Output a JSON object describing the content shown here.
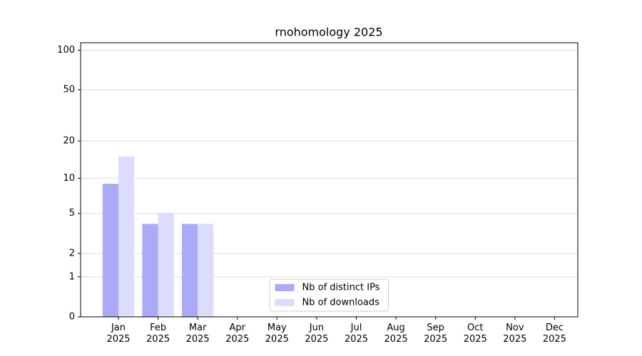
{
  "chart_data": {
    "type": "bar",
    "title": "rnohomology 2025",
    "categories": [
      "Jan\n2025",
      "Feb\n2025",
      "Mar\n2025",
      "Apr\n2025",
      "May\n2025",
      "Jun\n2025",
      "Jul\n2025",
      "Aug\n2025",
      "Sep\n2025",
      "Oct\n2025",
      "Nov\n2025",
      "Dec\n2025"
    ],
    "series": [
      {
        "name": "Nb of distinct IPs",
        "color": "#aaaaf8",
        "values": [
          9,
          4,
          4,
          0,
          0,
          0,
          0,
          0,
          0,
          0,
          0,
          0
        ]
      },
      {
        "name": "Nb of downloads",
        "color": "#dcdcfc",
        "values": [
          15,
          5,
          4,
          0,
          0,
          0,
          0,
          0,
          0,
          0,
          0,
          0
        ]
      }
    ],
    "yscale": "symlog",
    "ylim": [
      0,
      114
    ],
    "yticks": [
      0,
      1,
      2,
      5,
      10,
      20,
      50,
      100
    ],
    "grid": true,
    "legend": "lower center"
  }
}
